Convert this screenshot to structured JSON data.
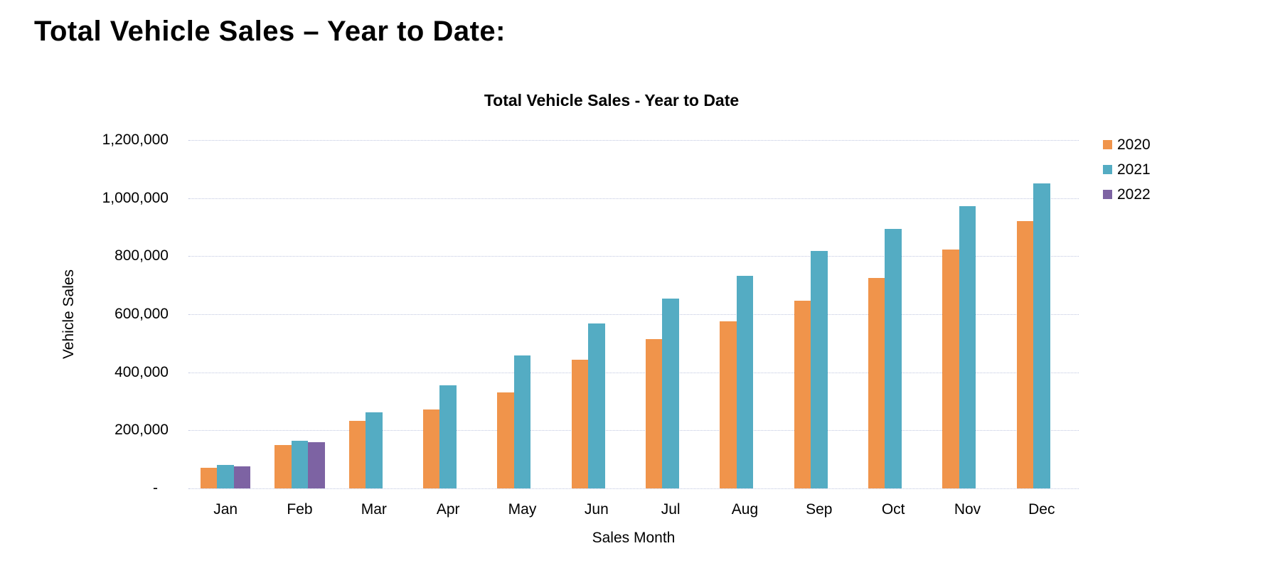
{
  "page": {
    "heading": "Total Vehicle Sales – Year to Date:"
  },
  "chart_data": {
    "type": "bar",
    "title": "Total Vehicle Sales - Year to Date",
    "xlabel": "Sales Month",
    "ylabel": "Vehicle Sales",
    "categories": [
      "Jan",
      "Feb",
      "Mar",
      "Apr",
      "May",
      "Jun",
      "Jul",
      "Aug",
      "Sep",
      "Oct",
      "Nov",
      "Dec"
    ],
    "series": [
      {
        "name": "2020",
        "color": "#F0944B",
        "values": [
          70000,
          149000,
          232000,
          271000,
          331000,
          443000,
          515000,
          576000,
          646000,
          724000,
          822000,
          920000
        ]
      },
      {
        "name": "2021",
        "color": "#54ACC3",
        "values": [
          81000,
          163000,
          262000,
          355000,
          457000,
          568000,
          654000,
          733000,
          817000,
          893000,
          973000,
          1051000
        ]
      },
      {
        "name": "2022",
        "color": "#7D63A3",
        "values": [
          77000,
          158000,
          null,
          null,
          null,
          null,
          null,
          null,
          null,
          null,
          null,
          null
        ]
      }
    ],
    "ylim": [
      0,
      1200000
    ],
    "yticks": [
      {
        "value": 1200000,
        "label": "1,200,000"
      },
      {
        "value": 1000000,
        "label": "1,000,000"
      },
      {
        "value": 800000,
        "label": "800,000"
      },
      {
        "value": 600000,
        "label": "600,000"
      },
      {
        "value": 400000,
        "label": "400,000"
      },
      {
        "value": 200000,
        "label": "200,000"
      },
      {
        "value": 0,
        "label": "-"
      }
    ],
    "grid": true,
    "gridline_style": "dotted",
    "gridline_color": "#bfc6e0",
    "legend_position": "right",
    "legend_entries": [
      "2020",
      "2021",
      "2022"
    ]
  }
}
